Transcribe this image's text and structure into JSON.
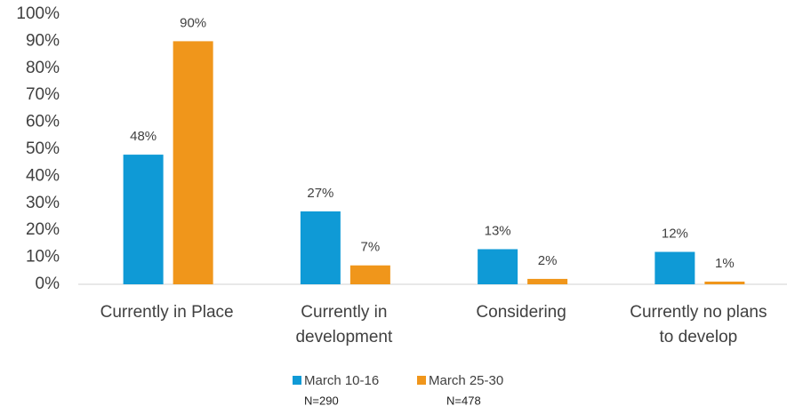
{
  "chart_data": {
    "type": "bar",
    "categories": [
      [
        "Currently in Place"
      ],
      [
        "Currently in",
        "development"
      ],
      [
        "Considering"
      ],
      [
        "Currently no plans",
        "to develop"
      ]
    ],
    "series": [
      {
        "name": "March 10-16",
        "sample": "N=290",
        "color": "#0f9ad6",
        "values": [
          48,
          27,
          13,
          12
        ],
        "value_labels": [
          "48%",
          "27%",
          "13%",
          "12%"
        ]
      },
      {
        "name": "March 25-30",
        "sample": "N=478",
        "color": "#f0961b",
        "values": [
          90,
          7,
          2,
          1
        ],
        "value_labels": [
          "90%",
          "7%",
          "2%",
          "1%"
        ]
      }
    ],
    "ylim": [
      0,
      100
    ],
    "yticks": [
      {
        "value": 0,
        "label": "0%"
      },
      {
        "value": 10,
        "label": "10%"
      },
      {
        "value": 20,
        "label": "20%"
      },
      {
        "value": 30,
        "label": "30%"
      },
      {
        "value": 40,
        "label": "40%"
      },
      {
        "value": 50,
        "label": "50%"
      },
      {
        "value": 60,
        "label": "60%"
      },
      {
        "value": 70,
        "label": "70%"
      },
      {
        "value": 80,
        "label": "80%"
      },
      {
        "value": 90,
        "label": "90%"
      },
      {
        "value": 100,
        "label": "100%"
      }
    ],
    "grid": false,
    "legend": "bottom"
  }
}
